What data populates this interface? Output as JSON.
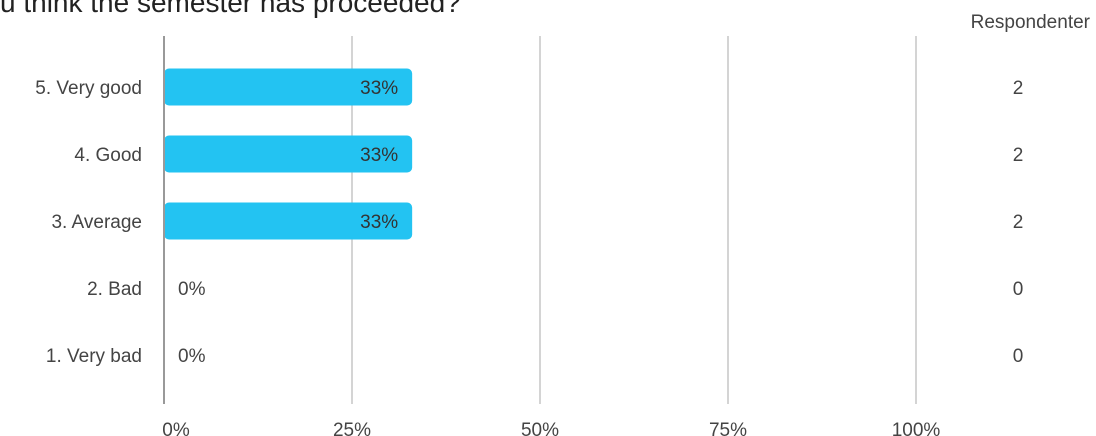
{
  "question": {
    "title": "u think the semester has proceeded?"
  },
  "respondents_header": "Respondenter",
  "colors": {
    "bar": "#23C3F2",
    "grid": "#aaaaaa",
    "axis": "#999999"
  },
  "chart_data": {
    "type": "bar",
    "orientation": "horizontal",
    "categories": [
      "5. Very good",
      "4. Good",
      "3. Average",
      "2. Bad",
      "1. Very bad"
    ],
    "values": [
      33,
      33,
      33,
      0,
      0
    ],
    "value_labels": [
      "33%",
      "33%",
      "33%",
      "0%",
      "0%"
    ],
    "counts": [
      "2",
      "2",
      "2",
      "0",
      "0"
    ],
    "xlim": [
      0,
      100
    ],
    "xticks": [
      "0%",
      "25%",
      "50%",
      "75%",
      "100%"
    ],
    "grid": true
  }
}
